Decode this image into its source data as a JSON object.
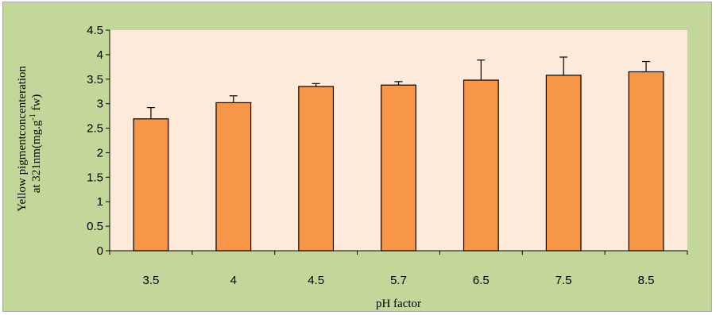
{
  "chart_data": {
    "type": "bar",
    "categories": [
      "3.5",
      "4",
      "4.5",
      "5.7",
      "6.5",
      "7.5",
      "8.5"
    ],
    "series": [
      {
        "values": [
          2.69,
          3.02,
          3.35,
          3.38,
          3.48,
          3.58,
          3.65
        ],
        "error_plus": [
          0.23,
          0.14,
          0.06,
          0.07,
          0.41,
          0.37,
          0.21
        ]
      }
    ],
    "title": "",
    "xlabel": "pH factor",
    "ylabel_line1": "Yellow pigmentconcenteration",
    "ylabel_line2_pre": "at 321nm(mg.g",
    "ylabel_line2_sup": "-1",
    "ylabel_line2_post": " fw)",
    "ylim": [
      0,
      4.5
    ],
    "yticks": [
      "0",
      "0.5",
      "1",
      "1.5",
      "2",
      "2.5",
      "3",
      "3.5",
      "4",
      "4.5"
    ],
    "grid": false,
    "legend": "none",
    "colors": {
      "bar_fill": "#f79646",
      "bar_stroke": "#000000",
      "plot_bg": "#fdeada",
      "chart_bg": "#c4d79b"
    }
  }
}
